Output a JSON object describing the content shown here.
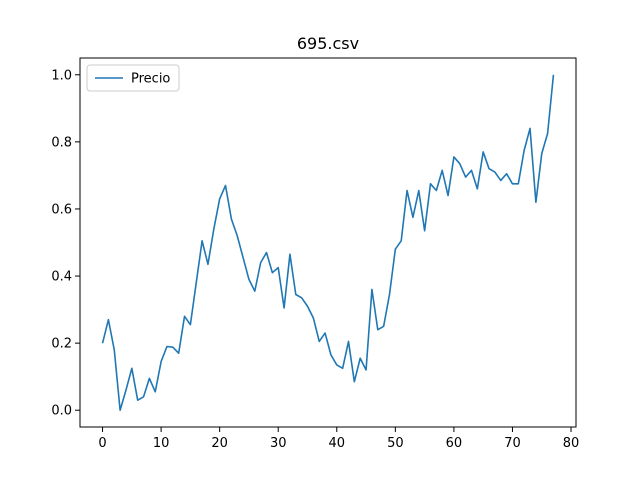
{
  "chart_data": {
    "type": "line",
    "title": "695.csv",
    "xlabel": "",
    "ylabel": "",
    "xlim": [
      -3.85,
      80.85
    ],
    "ylim": [
      -0.05,
      1.05
    ],
    "xticks": [
      0,
      10,
      20,
      30,
      40,
      50,
      60,
      70,
      80
    ],
    "xtick_labels": [
      "0",
      "10",
      "20",
      "30",
      "40",
      "50",
      "60",
      "70",
      "80"
    ],
    "yticks": [
      0.0,
      0.2,
      0.4,
      0.6,
      0.8,
      1.0
    ],
    "ytick_labels": [
      "0.0",
      "0.2",
      "0.4",
      "0.6",
      "0.8",
      "1.0"
    ],
    "grid": false,
    "legend_position": "top-left",
    "series": [
      {
        "name": "Precio",
        "color": "#1f77b4",
        "x": [
          0,
          1,
          2,
          3,
          4,
          5,
          6,
          7,
          8,
          9,
          10,
          11,
          12,
          13,
          14,
          15,
          16,
          17,
          18,
          19,
          20,
          21,
          22,
          23,
          24,
          25,
          26,
          27,
          28,
          29,
          30,
          31,
          32,
          33,
          34,
          35,
          36,
          37,
          38,
          39,
          40,
          41,
          42,
          43,
          44,
          45,
          46,
          47,
          48,
          49,
          50,
          51,
          52,
          53,
          54,
          55,
          56,
          57,
          58,
          59,
          60,
          61,
          62,
          63,
          64,
          65,
          66,
          67,
          68,
          69,
          70,
          71,
          72,
          73,
          74,
          75,
          76,
          77
        ],
        "values": [
          0.2,
          0.27,
          0.18,
          0.0,
          0.06,
          0.125,
          0.03,
          0.04,
          0.095,
          0.055,
          0.145,
          0.19,
          0.188,
          0.17,
          0.28,
          0.255,
          0.38,
          0.505,
          0.435,
          0.54,
          0.63,
          0.67,
          0.57,
          0.52,
          0.455,
          0.39,
          0.355,
          0.44,
          0.47,
          0.41,
          0.425,
          0.305,
          0.465,
          0.345,
          0.335,
          0.31,
          0.275,
          0.205,
          0.23,
          0.165,
          0.135,
          0.125,
          0.205,
          0.085,
          0.155,
          0.12,
          0.36,
          0.24,
          0.25,
          0.345,
          0.48,
          0.505,
          0.655,
          0.575,
          0.655,
          0.535,
          0.675,
          0.655,
          0.715,
          0.64,
          0.755,
          0.735,
          0.695,
          0.715,
          0.66,
          0.77,
          0.72,
          0.71,
          0.685,
          0.705,
          0.675,
          0.675,
          0.775,
          0.84,
          0.62,
          0.765,
          0.825,
          1.0
        ]
      }
    ]
  }
}
